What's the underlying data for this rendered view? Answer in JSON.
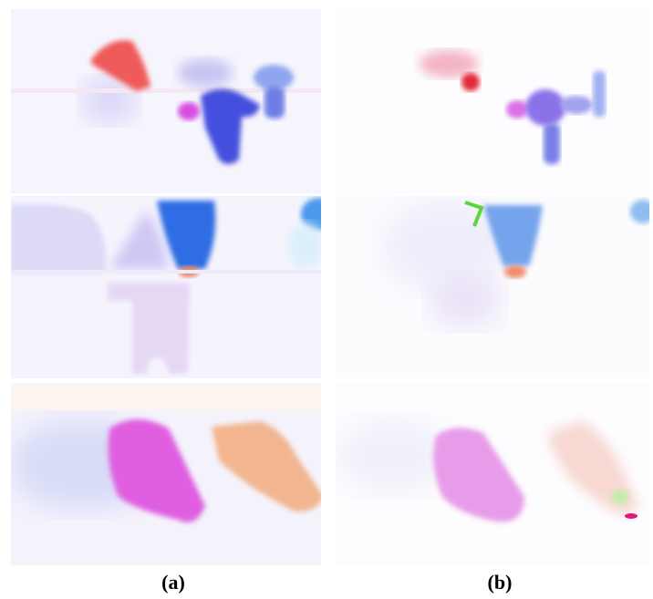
{
  "captions": [
    {
      "label": "(a)"
    },
    {
      "label": "(b)"
    }
  ]
}
